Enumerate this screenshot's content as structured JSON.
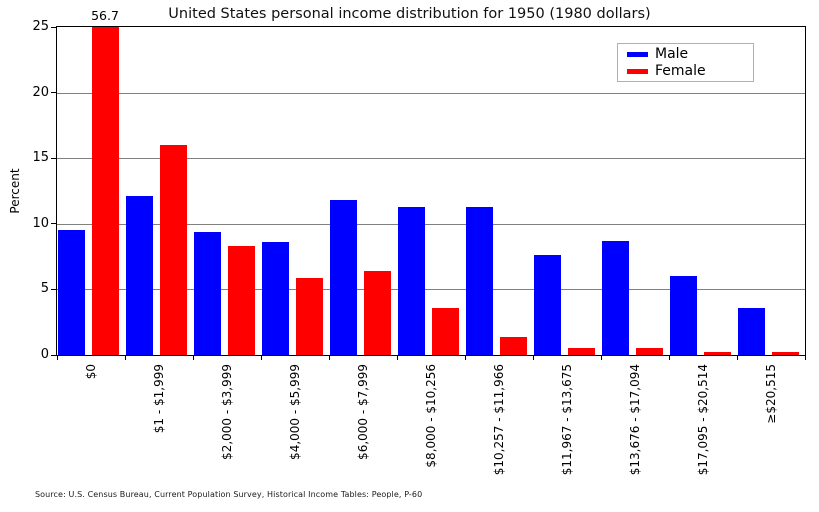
{
  "source_note": "Source: U.S. Census Bureau, Current Population Survey, Historical Income Tables: People, P-60",
  "chart_data": {
    "type": "bar",
    "title": "United States personal income distribution for 1950 (1980 dollars)",
    "xlabel": "",
    "ylabel": "Percent",
    "ylim": [
      0,
      25
    ],
    "yticks": [
      0,
      5,
      10,
      15,
      20,
      25
    ],
    "grid": "horizontal",
    "legend_position": "upper right",
    "categories": [
      "$0",
      "$1 - $1,999",
      "$2,000 - $3,999",
      "$4,000 - $5,999",
      "$6,000 - $7,999",
      "$8,000 - $10,256",
      "$10,257 - $11,966",
      "$11,967 - $13,675",
      "$13,676 - $17,094",
      "$17,095 - $20,514",
      "≥$20,515"
    ],
    "series": [
      {
        "name": "Male",
        "color": "#0000ff",
        "values": [
          9.5,
          12.1,
          9.4,
          8.6,
          11.8,
          11.3,
          11.3,
          7.6,
          8.7,
          6.0,
          3.6
        ]
      },
      {
        "name": "Female",
        "color": "#ff0000",
        "values": [
          56.7,
          16.0,
          8.3,
          5.9,
          6.4,
          3.6,
          1.4,
          0.5,
          0.5,
          0.2,
          0.2
        ]
      }
    ],
    "annotations": [
      {
        "text": "56.7",
        "series": "Female",
        "category_index": 0
      }
    ]
  }
}
